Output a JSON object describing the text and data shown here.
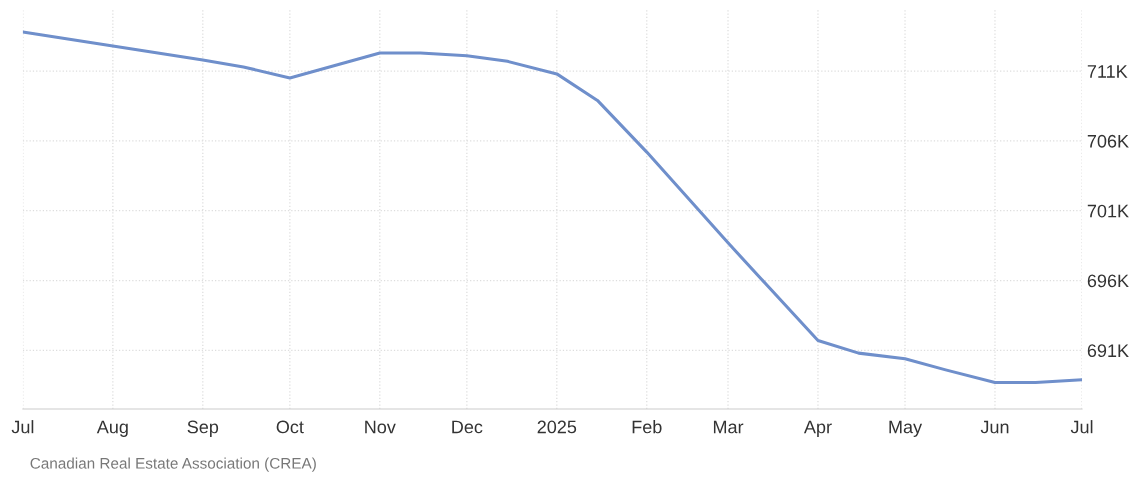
{
  "chart_data": {
    "type": "line",
    "x": [
      "2024-07-01",
      "2024-08-01",
      "2024-09-01",
      "2024-09-15",
      "2024-10-01",
      "2024-11-01",
      "2024-11-15",
      "2024-12-01",
      "2024-12-15",
      "2025-01-01",
      "2025-01-15",
      "2025-02-01",
      "2025-03-01",
      "2025-04-01",
      "2025-04-15",
      "2025-05-01",
      "2025-05-15",
      "2025-06-01",
      "2025-06-15",
      "2025-07-01"
    ],
    "series": [
      {
        "color": "#6f8fcb",
        "values": [
          713.8,
          712.8,
          711.8,
          711.3,
          710.5,
          712.3,
          712.3,
          712.1,
          711.7,
          710.8,
          708.9,
          705.2,
          698.7,
          691.7,
          690.8,
          690.4,
          689.6,
          688.7,
          688.7,
          688.9
        ]
      }
    ],
    "xlim": [
      "2024-07-01",
      "2025-07-01"
    ],
    "xticks": [
      {
        "value": "2024-07-01",
        "label": "Jul"
      },
      {
        "value": "2024-08-01",
        "label": "Aug"
      },
      {
        "value": "2024-09-01",
        "label": "Sep"
      },
      {
        "value": "2024-10-01",
        "label": "Oct"
      },
      {
        "value": "2024-11-01",
        "label": "Nov"
      },
      {
        "value": "2024-12-01",
        "label": "Dec"
      },
      {
        "value": "2025-01-01",
        "label": "2025"
      },
      {
        "value": "2025-02-01",
        "label": "Feb"
      },
      {
        "value": "2025-03-01",
        "label": "Mar"
      },
      {
        "value": "2025-04-01",
        "label": "Apr"
      },
      {
        "value": "2025-05-01",
        "label": "May"
      },
      {
        "value": "2025-06-01",
        "label": "Jun"
      },
      {
        "value": "2025-07-01",
        "label": "Jul"
      }
    ],
    "ylim": [
      686.8,
      715.4
    ],
    "yticks": [
      {
        "value": 691,
        "label": "691K"
      },
      {
        "value": 696,
        "label": "696K"
      },
      {
        "value": 701,
        "label": "701K"
      },
      {
        "value": 706,
        "label": "706K"
      },
      {
        "value": 711,
        "label": "711K"
      }
    ],
    "grid": true,
    "legend": false,
    "marker": "none",
    "line_style": "solid",
    "annotations": [
      "Canadian Real Estate Association (CREA)"
    ]
  }
}
